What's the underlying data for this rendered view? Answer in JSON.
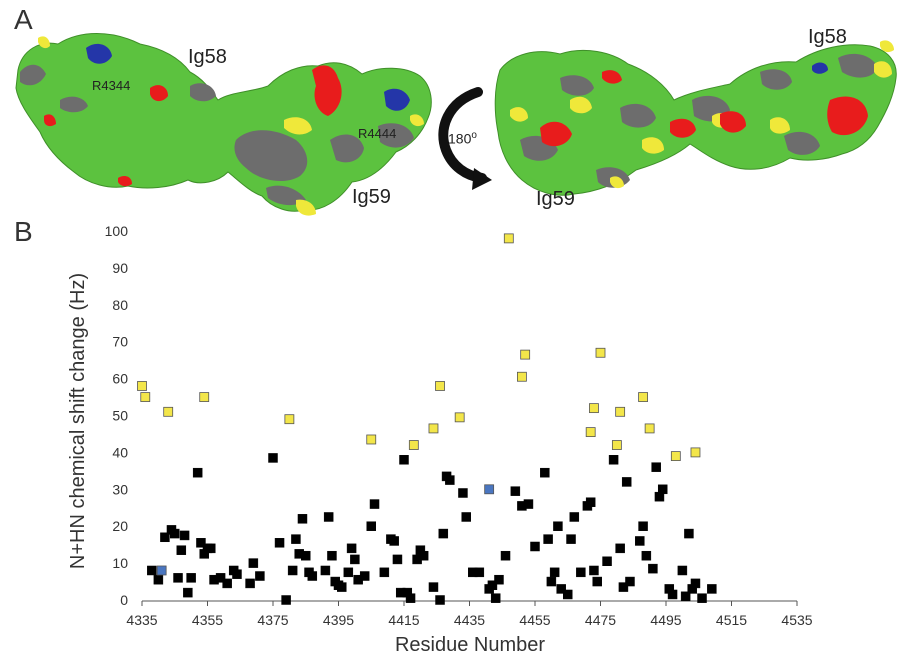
{
  "panel_a": {
    "letter": "A",
    "labels": {
      "ig58_left": "Ig58",
      "ig59_left": "Ig59",
      "ig58_right": "Ig58",
      "ig59_right": "Ig59",
      "r4344": "R4344",
      "r4444": "R4444",
      "rotation": "180o"
    },
    "colors": {
      "surface_green": "#5cc23f",
      "grey": "#6d6d6d",
      "yellow": "#efe83a",
      "red": "#e81c1c",
      "blue": "#2436a8"
    }
  },
  "panel_b": {
    "letter": "B"
  },
  "chart_data": {
    "type": "scatter",
    "title": "",
    "xlabel": "Residue Number",
    "ylabel": "N+HN chemical shift change (Hz)",
    "xlim": [
      4335,
      4535
    ],
    "ylim": [
      0,
      100
    ],
    "xticks": [
      4335,
      4355,
      4375,
      4395,
      4415,
      4435,
      4455,
      4475,
      4495,
      4515,
      4535
    ],
    "yticks": [
      0,
      10,
      20,
      30,
      40,
      50,
      60,
      70,
      80,
      90,
      100
    ],
    "series": [
      {
        "color": "#000000",
        "points": [
          [
            4338,
            8
          ],
          [
            4340,
            5.5
          ],
          [
            4342,
            17
          ],
          [
            4344,
            19
          ],
          [
            4345,
            18
          ],
          [
            4346,
            6
          ],
          [
            4347,
            13.5
          ],
          [
            4348,
            17.5
          ],
          [
            4349,
            2
          ],
          [
            4350,
            6
          ],
          [
            4352,
            34.5
          ],
          [
            4353,
            15.5
          ],
          [
            4354,
            12.5
          ],
          [
            4355,
            14
          ],
          [
            4356,
            14
          ],
          [
            4357,
            5.5
          ],
          [
            4359,
            6
          ],
          [
            4361,
            4.5
          ],
          [
            4363,
            8
          ],
          [
            4364,
            7
          ],
          [
            4368,
            4.5
          ],
          [
            4369,
            10
          ],
          [
            4371,
            6.5
          ],
          [
            4375,
            38.5
          ],
          [
            4377,
            15.5
          ],
          [
            4379,
            0
          ],
          [
            4381,
            8
          ],
          [
            4382,
            16.5
          ],
          [
            4383,
            12.5
          ],
          [
            4384,
            22
          ],
          [
            4385,
            12
          ],
          [
            4386,
            7.5
          ],
          [
            4387,
            6.5
          ],
          [
            4391,
            8
          ],
          [
            4392,
            22.5
          ],
          [
            4393,
            12
          ],
          [
            4394,
            5
          ],
          [
            4395,
            4
          ],
          [
            4396,
            3.5
          ],
          [
            4398,
            7.5
          ],
          [
            4399,
            14
          ],
          [
            4400,
            11
          ],
          [
            4401,
            5.5
          ],
          [
            4403,
            6.5
          ],
          [
            4405,
            20
          ],
          [
            4406,
            26
          ],
          [
            4409,
            7.5
          ],
          [
            4411,
            16.5
          ],
          [
            4412,
            16
          ],
          [
            4413,
            11
          ],
          [
            4414,
            2
          ],
          [
            4415,
            38
          ],
          [
            4416,
            2
          ],
          [
            4417,
            0.5
          ],
          [
            4419,
            11
          ],
          [
            4420,
            13.5
          ],
          [
            4421,
            12
          ],
          [
            4424,
            3.5
          ],
          [
            4426,
            0
          ],
          [
            4427,
            18
          ],
          [
            4428,
            33.5
          ],
          [
            4429,
            32.5
          ],
          [
            4433,
            29
          ],
          [
            4434,
            22.5
          ],
          [
            4436,
            7.5
          ],
          [
            4438,
            7.5
          ],
          [
            4441,
            3
          ],
          [
            4442,
            4
          ],
          [
            4443,
            0.5
          ],
          [
            4444,
            5.5
          ],
          [
            4446,
            12
          ],
          [
            4449,
            29.5
          ],
          [
            4451,
            25.5
          ],
          [
            4453,
            26
          ],
          [
            4455,
            14.5
          ],
          [
            4458,
            34.5
          ],
          [
            4459,
            16.5
          ],
          [
            4460,
            5
          ],
          [
            4461,
            7.5
          ],
          [
            4462,
            20
          ],
          [
            4463,
            3
          ],
          [
            4465,
            1.5
          ],
          [
            4466,
            16.5
          ],
          [
            4467,
            22.5
          ],
          [
            4469,
            7.5
          ],
          [
            4471,
            25.5
          ],
          [
            4472,
            26.5
          ],
          [
            4473,
            8
          ],
          [
            4474,
            5
          ],
          [
            4477,
            10.5
          ],
          [
            4479,
            38
          ],
          [
            4481,
            14
          ],
          [
            4482,
            3.5
          ],
          [
            4483,
            32
          ],
          [
            4484,
            5
          ],
          [
            4487,
            16
          ],
          [
            4488,
            20
          ],
          [
            4489,
            12
          ],
          [
            4491,
            8.5
          ],
          [
            4492,
            36
          ],
          [
            4493,
            28
          ],
          [
            4494,
            30
          ],
          [
            4496,
            3
          ],
          [
            4497,
            1.5
          ],
          [
            4500,
            8
          ],
          [
            4501,
            1
          ],
          [
            4502,
            18
          ],
          [
            4503,
            3
          ],
          [
            4504,
            4.5
          ],
          [
            4506,
            0.5
          ],
          [
            4509,
            3
          ]
        ]
      },
      {
        "color": "#f3e64a",
        "points": [
          [
            4335,
            58
          ],
          [
            4336,
            55
          ],
          [
            4343,
            51
          ],
          [
            4354,
            55
          ],
          [
            4380,
            49
          ],
          [
            4405,
            43.5
          ],
          [
            4418,
            42
          ],
          [
            4424,
            46.5
          ],
          [
            4426,
            58
          ],
          [
            4432,
            49.5
          ],
          [
            4447,
            98
          ],
          [
            4451,
            60.5
          ],
          [
            4452,
            66.5
          ],
          [
            4472,
            45.5
          ],
          [
            4473,
            52
          ],
          [
            4475,
            67
          ],
          [
            4480,
            42
          ],
          [
            4481,
            51
          ],
          [
            4488,
            55
          ],
          [
            4490,
            46.5
          ],
          [
            4498,
            39
          ],
          [
            4504,
            40
          ]
        ]
      },
      {
        "color": "#4a76c0",
        "points": [
          [
            4341,
            8
          ],
          [
            4441,
            30
          ]
        ]
      }
    ]
  }
}
